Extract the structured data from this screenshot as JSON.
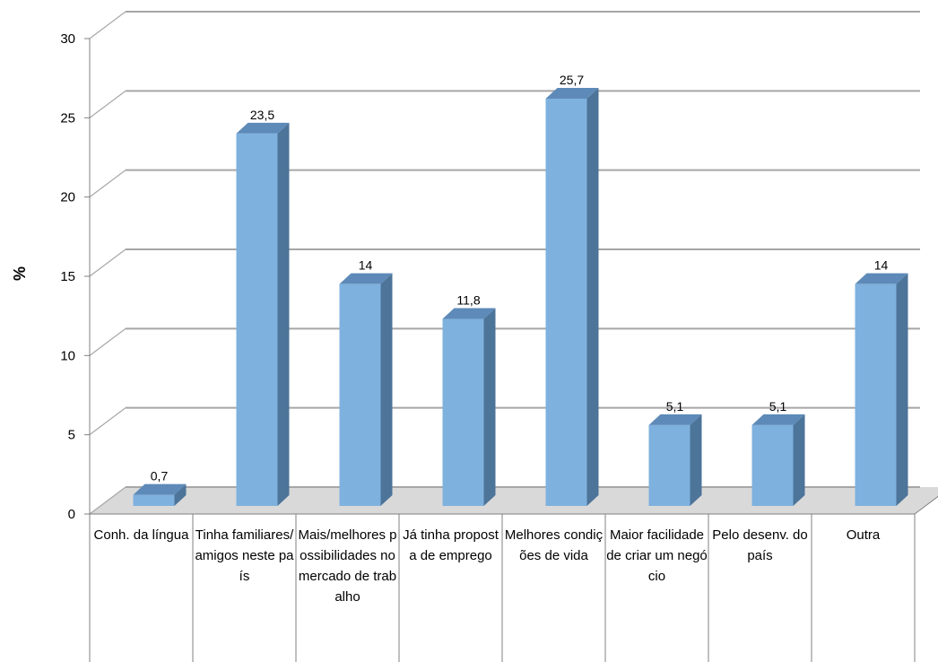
{
  "chart_data": {
    "type": "bar",
    "title": "",
    "xlabel": "",
    "ylabel": "%",
    "ylim": [
      0,
      30
    ],
    "yticks": [
      "0",
      "5",
      "10",
      "15",
      "20",
      "25",
      "30"
    ],
    "grid": true,
    "legend": "none",
    "categories": [
      "Conh. da língua",
      "Tinha familiares/amigos neste país",
      "Mais/melhores possibilidades no mercado de trabalho",
      "Já tinha proposta de emprego",
      "Melhores condições de vida",
      "Maior facilidade de criar um negócio",
      "Pelo desenv. do país",
      "Outra"
    ],
    "values": [
      0.7,
      23.5,
      14,
      11.8,
      25.7,
      5.1,
      5.1,
      14
    ],
    "data_labels": [
      "0,7",
      "23,5",
      "14",
      "11,8",
      "25,7",
      "5,1",
      "5,1",
      "14"
    ],
    "colors": {
      "bar_front": "#7eb1de",
      "bar_side": "#4d7499",
      "bar_top": "#5d8ab8",
      "grid": "#a6a6a6",
      "floor": "#d9d9d9"
    }
  }
}
